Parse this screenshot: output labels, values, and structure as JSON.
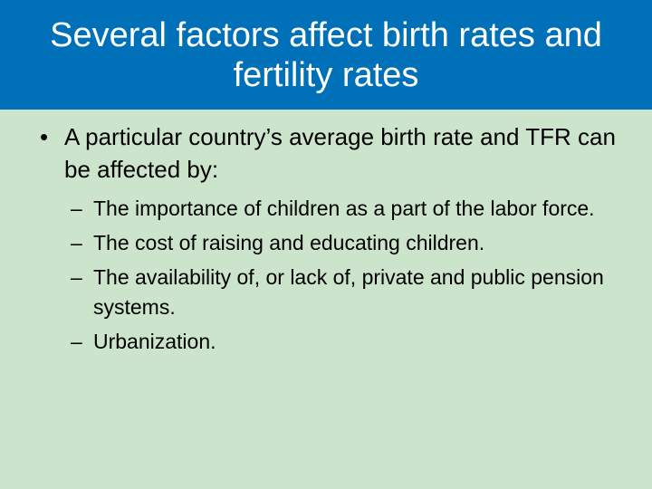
{
  "slide": {
    "title": "Several factors affect birth rates and fertility rates",
    "colors": {
      "title_bar": "#0070B8",
      "background": "#CCE4CB"
    },
    "bullet": {
      "marker": "•",
      "text": "A particular country’s average birth rate and TFR can be affected by:"
    },
    "sub_marker": "–",
    "sub_bullets": [
      "The importance of children as a part of the labor force.",
      "The cost of raising and educating children.",
      "The availability of, or lack of, private and public pension systems.",
      "Urbanization."
    ]
  }
}
